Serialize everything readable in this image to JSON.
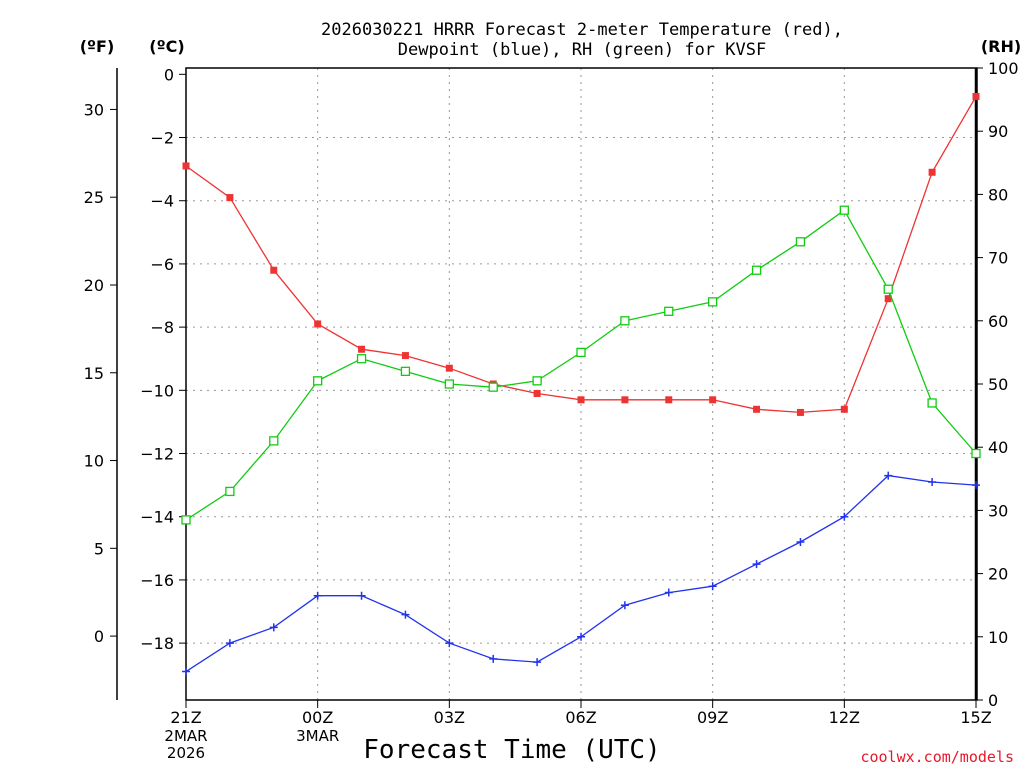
{
  "title_line1": "2026030221 HRRR Forecast 2-meter Temperature (red),",
  "title_line2": "Dewpoint (blue), RH (green) for KVSF",
  "units": {
    "left_f": "(ºF)",
    "left_c": "(ºC)",
    "right_rh": "(RH)"
  },
  "xlabel": "Forecast Time (UTC)",
  "credit": "coolwx.com/models",
  "colors": {
    "temperature": "#ee3333",
    "dewpoint": "#2233ee",
    "rh": "#11cc11",
    "grid": "#9a9a9a"
  },
  "chart_data": {
    "type": "line",
    "x": [
      0,
      1,
      2,
      3,
      4,
      5,
      6,
      7,
      8,
      9,
      10,
      11,
      12,
      13,
      14,
      15,
      16,
      17,
      18
    ],
    "x_ticks": [
      {
        "x": 0,
        "label": "21Z",
        "date": [
          "2MAR",
          "2026"
        ]
      },
      {
        "x": 3,
        "label": "00Z",
        "date": [
          "3MAR"
        ]
      },
      {
        "x": 6,
        "label": "03Z",
        "date": []
      },
      {
        "x": 9,
        "label": "06Z",
        "date": []
      },
      {
        "x": 12,
        "label": "09Z",
        "date": []
      },
      {
        "x": 15,
        "label": "12Z",
        "date": []
      },
      {
        "x": 18,
        "label": "15Z",
        "date": []
      }
    ],
    "xlim": [
      0,
      18
    ],
    "celsius_axis": {
      "ylim": [
        -19.8,
        0.2
      ],
      "ticks": [
        "0",
        "−2",
        "−4",
        "−6",
        "−8",
        "−10",
        "−12",
        "−14",
        "−16",
        "−18"
      ],
      "values": [
        0,
        -2,
        -4,
        -6,
        -8,
        -10,
        -12,
        -14,
        -16,
        -18
      ]
    },
    "fahrenheit_axis": {
      "ticks": [
        "30",
        "25",
        "20",
        "15",
        "10",
        "5",
        "0"
      ],
      "values": [
        30,
        25,
        20,
        15,
        10,
        5,
        0
      ]
    },
    "rh_axis": {
      "ylim": [
        0,
        100
      ],
      "ticks": [
        "100",
        "90",
        "80",
        "70",
        "60",
        "50",
        "40",
        "30",
        "20",
        "10",
        "0"
      ],
      "values": [
        100,
        90,
        80,
        70,
        60,
        50,
        40,
        30,
        20,
        10,
        0
      ]
    },
    "grid": true,
    "series": [
      {
        "name": "Temperature",
        "axis": "celsius",
        "marker": "filled-square",
        "values": [
          -2.9,
          -3.9,
          -6.2,
          -7.9,
          -8.7,
          -8.9,
          -9.3,
          -9.8,
          -10.1,
          -10.3,
          -10.3,
          -10.3,
          -10.3,
          -10.6,
          -10.7,
          -10.6,
          -7.1,
          -3.1,
          -0.7
        ]
      },
      {
        "name": "Dewpoint",
        "axis": "celsius",
        "marker": "plus",
        "values": [
          -18.9,
          -18.0,
          -17.5,
          -16.5,
          -16.5,
          -17.1,
          -18.0,
          -18.5,
          -18.6,
          -17.8,
          -16.8,
          -16.4,
          -16.2,
          -15.5,
          -14.8,
          -14.0,
          -12.7,
          -12.9,
          -13.0
        ]
      },
      {
        "name": "RH",
        "axis": "rh",
        "marker": "open-square",
        "values": [
          28.5,
          33.0,
          41.0,
          50.5,
          54.0,
          52.0,
          50.0,
          49.5,
          50.5,
          55.0,
          60.0,
          61.5,
          63.0,
          68.0,
          72.5,
          77.5,
          65.0,
          47.0,
          39.0
        ]
      }
    ]
  }
}
